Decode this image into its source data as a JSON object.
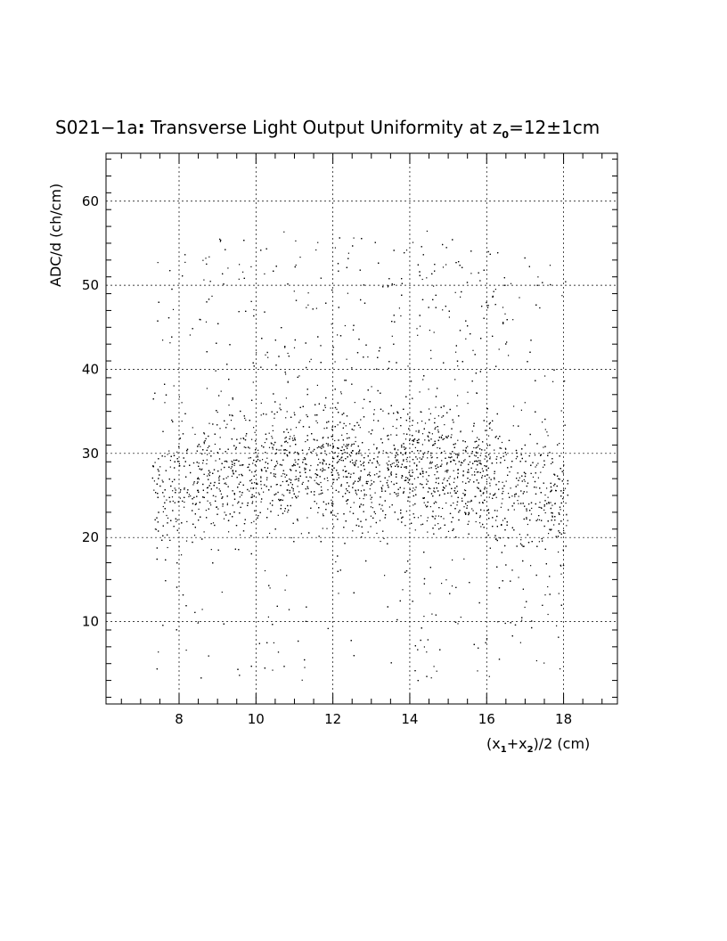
{
  "chart_data": {
    "type": "scatter",
    "title": {
      "prefix": "S021−1a",
      "colon": ":",
      "main": " Transverse Light Output Uniformity at z",
      "sub": "0",
      "suffix": "=12±1cm"
    },
    "xlabel": {
      "p1": "(x",
      "s1": "1",
      "p2": "+x",
      "s2": "2",
      "p3": ")/2 (cm)"
    },
    "ylabel": "ADC/d (ch/cm)",
    "xlim": [
      6.1,
      19.4
    ],
    "ylim": [
      0.2,
      65.7
    ],
    "x_ticks": [
      8,
      10,
      12,
      14,
      16,
      18
    ],
    "y_ticks": [
      10,
      20,
      30,
      40,
      50,
      60
    ],
    "x_tick_labels": [
      "8",
      "10",
      "12",
      "14",
      "16",
      "18"
    ],
    "y_tick_labels": [
      "10",
      "20",
      "30",
      "40",
      "50",
      "60"
    ],
    "grid": true,
    "marker_color": "#000000",
    "point_density": {
      "x_range": [
        7.3,
        18.1
      ],
      "band_center_y": 28,
      "band_spread_y": 3.5,
      "x_profile": [
        {
          "x": 7.5,
          "weight": 0.6,
          "center": 26
        },
        {
          "x": 8.5,
          "weight": 0.8,
          "center": 27
        },
        {
          "x": 9.5,
          "weight": 0.9,
          "center": 28
        },
        {
          "x": 10.5,
          "weight": 1.0,
          "center": 28.5
        },
        {
          "x": 11.5,
          "weight": 1.0,
          "center": 28.5
        },
        {
          "x": 12.5,
          "weight": 1.0,
          "center": 28.5
        },
        {
          "x": 13.5,
          "weight": 1.1,
          "center": 28.5
        },
        {
          "x": 14.5,
          "weight": 1.2,
          "center": 28.5
        },
        {
          "x": 15.5,
          "weight": 1.2,
          "center": 28
        },
        {
          "x": 16.5,
          "weight": 1.0,
          "center": 27
        },
        {
          "x": 17.5,
          "weight": 0.7,
          "center": 25
        }
      ]
    }
  }
}
